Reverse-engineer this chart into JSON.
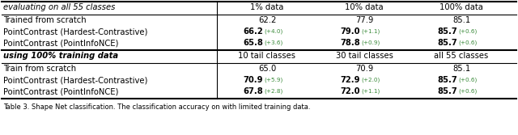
{
  "section1_header": [
    "evaluating on all 55 classes",
    "1% data",
    "10% data",
    "100% data"
  ],
  "section1_rows": [
    {
      "method": "Trained from scratch",
      "vals": [
        "62.2",
        "77.9",
        "85.1"
      ],
      "deltas": [
        "",
        "",
        ""
      ],
      "bold_vals": [
        false,
        false,
        false
      ]
    },
    {
      "method": "PointContrast (Hardest-Contrastive)",
      "vals": [
        "66.2",
        "79.0",
        "85.7"
      ],
      "deltas": [
        "(+4.0)",
        "(+1.1)",
        "(+0.6)"
      ],
      "bold_vals": [
        true,
        true,
        true
      ]
    },
    {
      "method": "PointContrast (PointInfoNCE)",
      "vals": [
        "65.8",
        "78.8",
        "85.7"
      ],
      "deltas": [
        "(+3.6)",
        "(+0.9)",
        "(+0.6)"
      ],
      "bold_vals": [
        true,
        true,
        true
      ]
    }
  ],
  "section2_header": [
    "using 100% training data",
    "10 tail classes",
    "30 tail classes",
    "all 55 classes"
  ],
  "section2_rows": [
    {
      "method": "Train from scratch",
      "vals": [
        "65.0",
        "70.9",
        "85.1"
      ],
      "deltas": [
        "",
        "",
        ""
      ],
      "bold_vals": [
        false,
        false,
        false
      ]
    },
    {
      "method": "PointContrast (Hardest-Contrastive)",
      "vals": [
        "70.9",
        "72.9",
        "85.7"
      ],
      "deltas": [
        "(+5.9)",
        "(+2.0)",
        "(+0.6)"
      ],
      "bold_vals": [
        true,
        true,
        true
      ]
    },
    {
      "method": "PointContrast (PointInfoNCE)",
      "vals": [
        "67.8",
        "72.0",
        "85.7"
      ],
      "deltas": [
        "(+2.8)",
        "(+1.1)",
        "(+0.6)"
      ],
      "bold_vals": [
        true,
        true,
        true
      ]
    }
  ],
  "caption": "Table 3. Shape Net classification. The classification accuracy on with limited training data.",
  "green_color": "#3a8a3a",
  "text_color": "#000000",
  "bg_color": "#ffffff"
}
